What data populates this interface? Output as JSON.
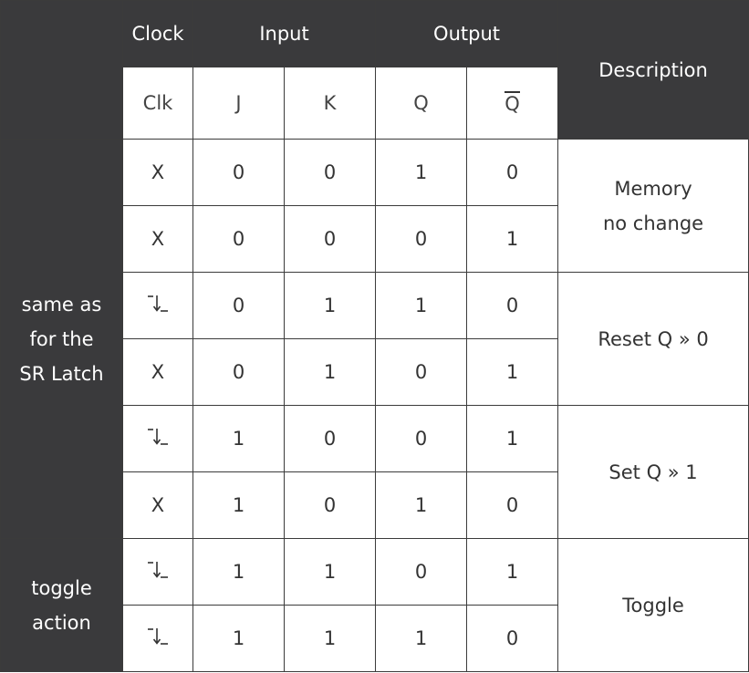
{
  "header": {
    "clock": "Clock",
    "input": "Input",
    "output": "Output",
    "description": "Description"
  },
  "subheader": {
    "clk": "Clk",
    "j": "J",
    "k": "K",
    "q": "Q",
    "q_bar": "Q"
  },
  "groups": [
    {
      "lines": [
        "same as",
        "for the",
        "SR Latch"
      ]
    },
    {
      "lines": [
        "toggle",
        "action"
      ]
    }
  ],
  "rows": [
    {
      "clk": "X",
      "clk_icon": "",
      "j": "0",
      "k": "0",
      "q": "1",
      "q_bar": "0"
    },
    {
      "clk": "X",
      "clk_icon": "",
      "j": "0",
      "k": "0",
      "q": "0",
      "q_bar": "1"
    },
    {
      "clk": "",
      "clk_icon": "falling-edge-icon",
      "j": "0",
      "k": "1",
      "q": "1",
      "q_bar": "0"
    },
    {
      "clk": "X",
      "clk_icon": "",
      "j": "0",
      "k": "1",
      "q": "0",
      "q_bar": "1"
    },
    {
      "clk": "",
      "clk_icon": "falling-edge-icon",
      "j": "1",
      "k": "0",
      "q": "0",
      "q_bar": "1"
    },
    {
      "clk": "X",
      "clk_icon": "",
      "j": "1",
      "k": "0",
      "q": "1",
      "q_bar": "0"
    },
    {
      "clk": "",
      "clk_icon": "falling-edge-icon",
      "j": "1",
      "k": "1",
      "q": "0",
      "q_bar": "1"
    },
    {
      "clk": "",
      "clk_icon": "falling-edge-icon",
      "j": "1",
      "k": "1",
      "q": "1",
      "q_bar": "0"
    }
  ],
  "descriptions": [
    {
      "lines": [
        "Memory",
        "no change"
      ]
    },
    {
      "lines": [
        "Reset Q » 0"
      ]
    },
    {
      "lines": [
        "Set Q » 1"
      ]
    },
    {
      "lines": [
        "Toggle"
      ]
    }
  ]
}
